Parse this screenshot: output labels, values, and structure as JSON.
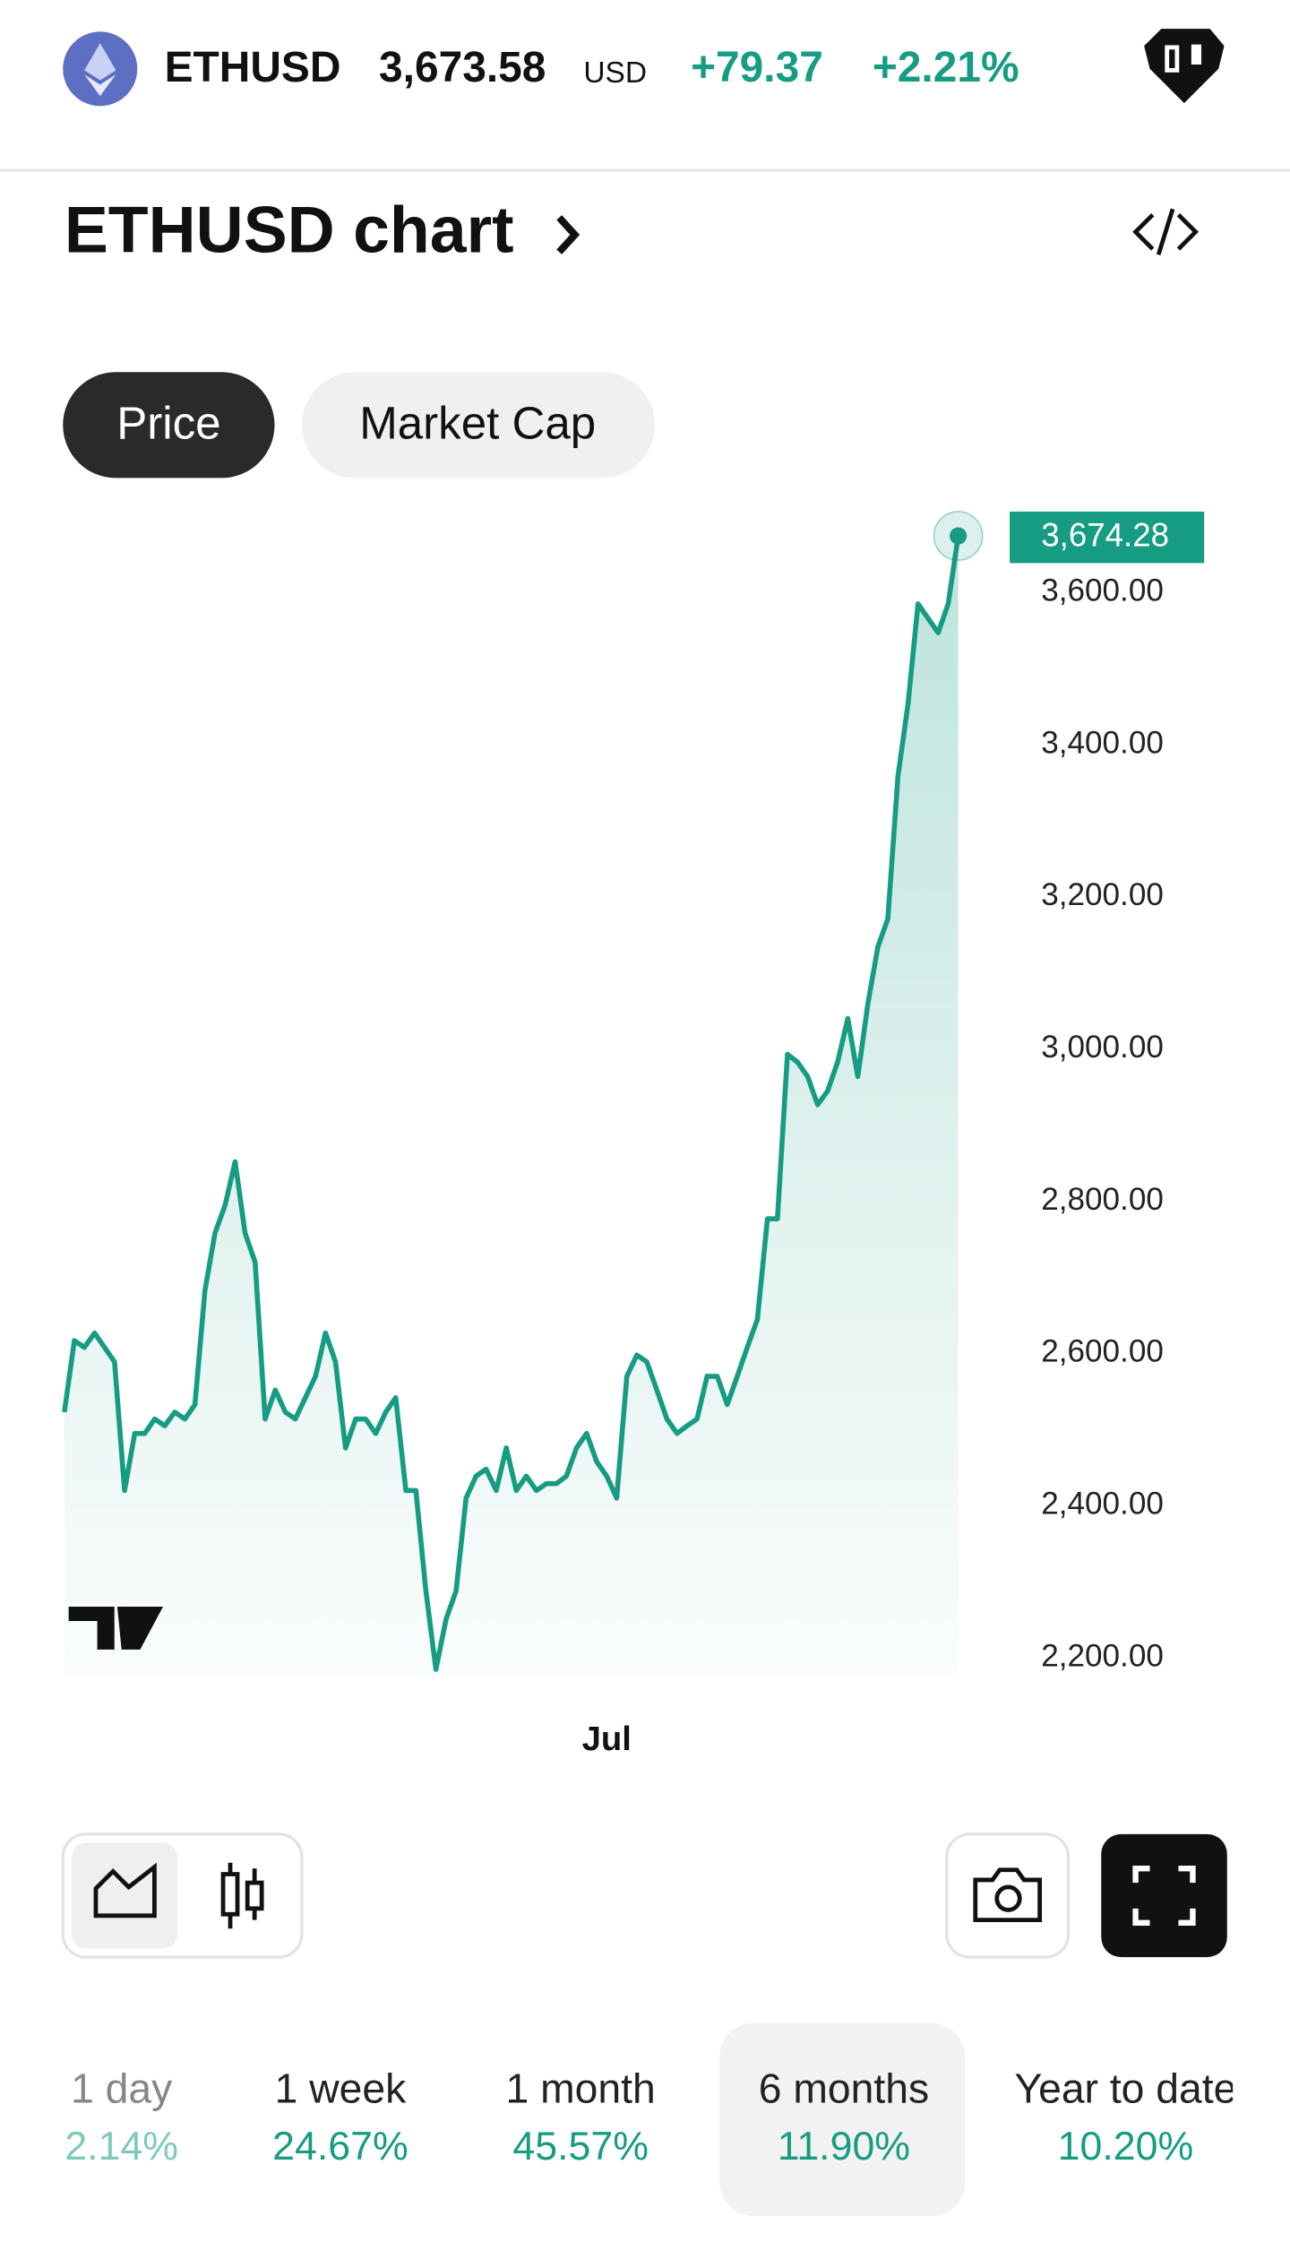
{
  "header": {
    "symbol": "ETHUSD",
    "price": "3,673.58",
    "currency": "USD",
    "change": "+79.37",
    "change_percent": "+2.21%"
  },
  "section_title": "ETHUSD chart",
  "tabs": [
    "Price",
    "Market Cap"
  ],
  "chart_data": {
    "type": "line",
    "color": "#169c83",
    "categories": [
      null,
      null,
      null,
      null,
      null,
      null,
      null,
      null,
      null,
      null,
      null,
      null,
      null,
      null,
      null,
      null,
      null,
      null,
      null,
      null,
      null,
      null,
      null,
      null,
      null,
      null,
      null,
      null,
      null,
      null,
      null,
      null,
      null,
      null,
      null,
      null,
      null,
      null,
      null,
      null,
      null,
      null,
      null,
      null,
      null,
      null,
      null,
      null,
      null,
      null,
      null,
      null,
      null,
      null,
      "Jul",
      null,
      null,
      null,
      null,
      null,
      null,
      null,
      null,
      null,
      null,
      null,
      null,
      null,
      null,
      null,
      null,
      null,
      null,
      null,
      null,
      null,
      null,
      null,
      null,
      null,
      null,
      null,
      null,
      null,
      null,
      null,
      null,
      null,
      null,
      null
    ],
    "values": [
      2523,
      2617,
      2608,
      2627,
      2608,
      2589,
      2420,
      2495,
      2495,
      2514,
      2505,
      2523,
      2514,
      2533,
      2683,
      2758,
      2795,
      2852,
      2758,
      2720,
      2514,
      2552,
      2523,
      2514,
      2542,
      2570,
      2627,
      2589,
      2476,
      2514,
      2514,
      2495,
      2523,
      2542,
      2420,
      2420,
      2288,
      2185,
      2251,
      2288,
      2410,
      2439,
      2448,
      2420,
      2476,
      2420,
      2439,
      2420,
      2429,
      2429,
      2439,
      2476,
      2495,
      2458,
      2439,
      2410,
      2570,
      2598,
      2589,
      2552,
      2514,
      2495,
      2505,
      2514,
      2570,
      2570,
      2533,
      2570,
      2608,
      2645,
      2777,
      2777,
      2993,
      2983,
      2964,
      2927,
      2945,
      2983,
      3040,
      2964,
      3059,
      3134,
      3171,
      3359,
      3453,
      3585,
      3566,
      3547,
      3585,
      3674.28
    ],
    "ylim": [
      2176,
      3688
    ],
    "yticks": [
      {
        "value": 2200,
        "label": "2,200.00"
      },
      {
        "value": 2400,
        "label": "2,400.00"
      },
      {
        "value": 2600,
        "label": "2,600.00"
      },
      {
        "value": 2800,
        "label": "2,800.00"
      },
      {
        "value": 3000,
        "label": "3,000.00"
      },
      {
        "value": 3200,
        "label": "3,200.00"
      },
      {
        "value": 3400,
        "label": "3,400.00"
      },
      {
        "value": 3600,
        "label": "3,600.00"
      }
    ],
    "last_price": {
      "value": 3674.28,
      "label": "3,674.28"
    }
  },
  "periods": [
    {
      "label": "1 day",
      "change": "2.14%"
    },
    {
      "label": "1 week",
      "change": "24.67%"
    },
    {
      "label": "1 month",
      "change": "45.57%"
    },
    {
      "label": "6 months",
      "change": "11.90%"
    },
    {
      "label": "Year to date",
      "change": "10.20%"
    }
  ]
}
